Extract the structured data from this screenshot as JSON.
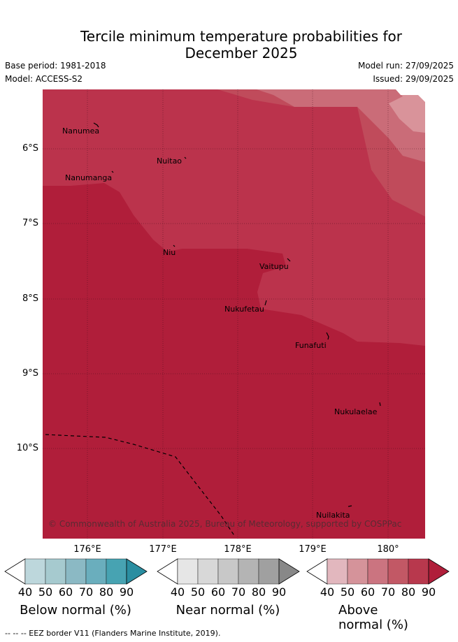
{
  "title_line1": "Tercile minimum temperature probabilities for",
  "title_line2": "December 2025",
  "base_period": "Base period: 1981-2018",
  "model": "Model: ACCESS-S2",
  "model_run": "Model run: 27/09/2025",
  "issued": "Issued: 29/09/2025",
  "lon_labels": [
    "176°E",
    "177°E",
    "178°E",
    "179°E",
    "180°"
  ],
  "lat_labels": [
    "6°S",
    "7°S",
    "8°S",
    "9°S",
    "10°S"
  ],
  "places": [
    "Nanumea",
    "Nuitao",
    "Nanumanga",
    "Niu",
    "Vaitupu",
    "Nukufetau",
    "Funafuti",
    "Nukulaelae",
    "Nuilakita"
  ],
  "copyright": "© Commonwealth of Australia 2025, Bureau of Meteorology, supported by COSPPac",
  "colorbars": [
    {
      "label": "Below normal (%)",
      "ticks": [
        "40",
        "50",
        "60",
        "70",
        "80",
        "90"
      ],
      "colors": [
        "#ffffff",
        "#bdd7dc",
        "#a6cacf",
        "#8bb9c4",
        "#6aaebd",
        "#47a3b2",
        "#2a8ea1"
      ]
    },
    {
      "label": "Near normal (%)",
      "ticks": [
        "40",
        "50",
        "60",
        "70",
        "80",
        "90"
      ],
      "colors": [
        "#ffffff",
        "#e6e6e6",
        "#d8d8d8",
        "#c8c8c8",
        "#b4b4b4",
        "#a0a0a0",
        "#888888"
      ]
    },
    {
      "label": "Above normal (%)",
      "ticks": [
        "40",
        "50",
        "60",
        "70",
        "80",
        "90"
      ],
      "colors": [
        "#ffffff",
        "#e2b7be",
        "#d5939a",
        "#cb7480",
        "#c25865",
        "#b8384d",
        "#b01e3a"
      ]
    }
  ],
  "eez_legend": "-- -- -- EEZ border V11 (Flanders Marine Institute, 2019)."
}
